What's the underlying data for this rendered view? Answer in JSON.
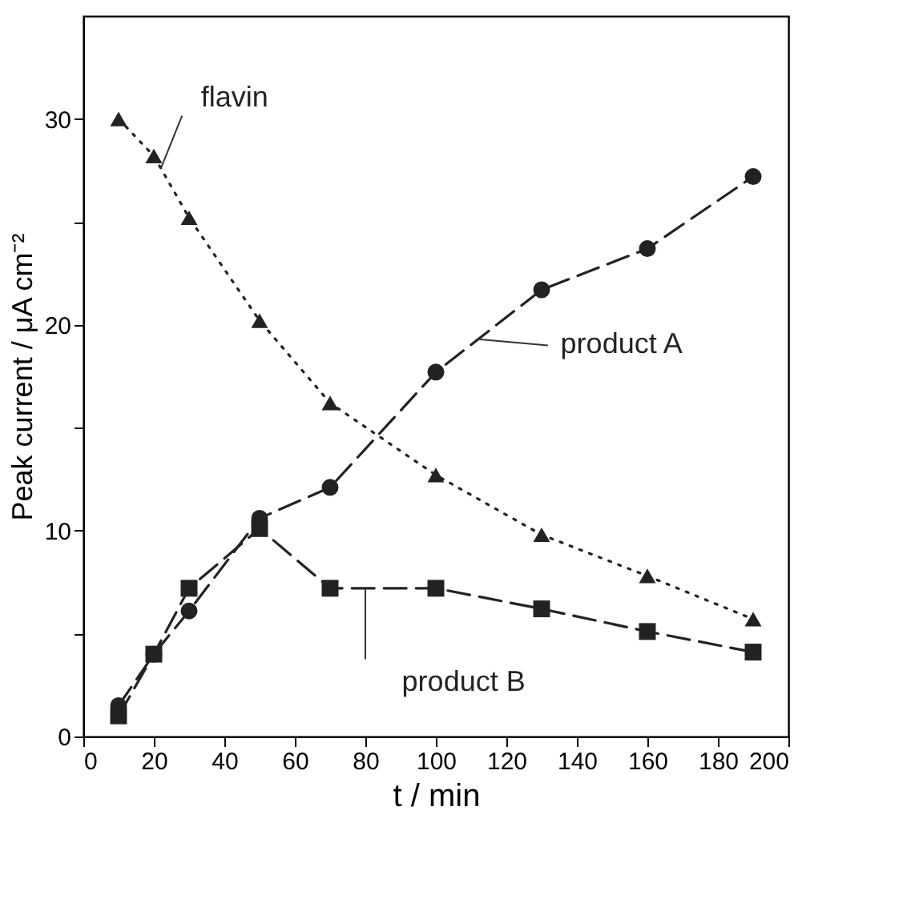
{
  "chart_data": {
    "type": "line",
    "xlabel": "t / min",
    "ylabel": "Peak current / μA cm⁻²",
    "x": [
      10,
      20,
      30,
      50,
      70,
      100,
      130,
      160,
      190
    ],
    "series": [
      {
        "color": "#222222",
        "marker": "triangle",
        "line_style": "dotted",
        "values": [
          30,
          28.2,
          25.2,
          20.2,
          16.2,
          12.7,
          9.8,
          7.8,
          5.7
        ]
      },
      {
        "color": "#222222",
        "marker": "circle",
        "line_style": "dashed",
        "values": [
          1.5,
          4,
          6.1,
          10.6,
          12.1,
          17.7,
          21.7,
          23.7,
          27.2
        ]
      },
      {
        "color": "#222222",
        "marker": "square",
        "line_style": "dashed",
        "values": [
          1.0,
          4,
          7.2,
          10.1,
          7.2,
          7.2,
          6.2,
          5.1,
          4.1
        ]
      }
    ],
    "xlim": [
      0,
      200
    ],
    "xticks": [
      0,
      20,
      40,
      60,
      80,
      100,
      120,
      140,
      160,
      180,
      200
    ],
    "ylim": [
      0,
      35
    ],
    "yticks": [
      0,
      {
        "value": 5,
        "label": null
      },
      10,
      {
        "value": 15,
        "label": null
      },
      20,
      {
        "value": 25,
        "label": null
      },
      30
    ],
    "annotations": [
      {
        "text": "flavin",
        "x": 22,
        "y": 27.6
      },
      {
        "text": "product A",
        "x": 112,
        "y": 19.3
      },
      {
        "text": "product B",
        "x": 80,
        "y": 7.2
      }
    ],
    "grid": false
  }
}
